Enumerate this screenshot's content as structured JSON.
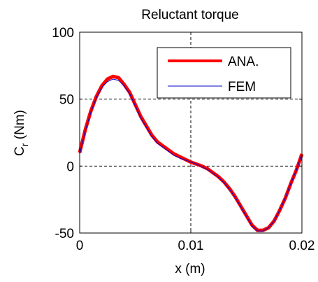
{
  "chart_data": {
    "type": "line",
    "title": "Reluctant torque",
    "xlabel": "x (m)",
    "ylabel_main": "C",
    "ylabel_sub": "r",
    "ylabel_unit": " (Nm)",
    "xlim": [
      0,
      0.02
    ],
    "ylim": [
      -50,
      100
    ],
    "xticks": [
      0,
      0.01,
      0.02
    ],
    "xtick_labels": [
      "0",
      "0.01",
      "0.02"
    ],
    "yticks": [
      -50,
      0,
      50,
      100
    ],
    "ytick_labels": [
      "-50",
      "0",
      "50",
      "100"
    ],
    "grid": true,
    "legend_position": "top-right",
    "series": [
      {
        "name": "ANA.",
        "color": "#ff0000",
        "x": [
          0,
          0.0005,
          0.001,
          0.0015,
          0.002,
          0.0025,
          0.003,
          0.0035,
          0.004,
          0.0045,
          0.005,
          0.0055,
          0.006,
          0.0065,
          0.007,
          0.0075,
          0.008,
          0.0085,
          0.009,
          0.0095,
          0.01,
          0.0105,
          0.011,
          0.0115,
          0.012,
          0.0125,
          0.013,
          0.0135,
          0.014,
          0.0145,
          0.015,
          0.0155,
          0.016,
          0.0165,
          0.017,
          0.0175,
          0.018,
          0.0185,
          0.019,
          0.0195,
          0.02
        ],
        "values": [
          10,
          27,
          41,
          52,
          60,
          65,
          67,
          66,
          61,
          55,
          46,
          37,
          30,
          23,
          18,
          15,
          12,
          9,
          7,
          5,
          3,
          1.5,
          0,
          -2,
          -5,
          -8,
          -12,
          -17,
          -23,
          -30,
          -37,
          -44,
          -48,
          -48,
          -46,
          -41,
          -33,
          -24,
          -13,
          -3,
          9
        ]
      },
      {
        "name": "FEM",
        "color": "#0000cc",
        "x": [
          0,
          0.0005,
          0.001,
          0.0015,
          0.002,
          0.0025,
          0.003,
          0.0035,
          0.004,
          0.0045,
          0.005,
          0.0055,
          0.006,
          0.0065,
          0.007,
          0.0075,
          0.008,
          0.0085,
          0.009,
          0.0095,
          0.01,
          0.0105,
          0.011,
          0.0115,
          0.012,
          0.0125,
          0.013,
          0.0135,
          0.014,
          0.0145,
          0.015,
          0.0155,
          0.016,
          0.0165,
          0.017,
          0.0175,
          0.018,
          0.0185,
          0.019,
          0.0195,
          0.02
        ],
        "values": [
          9,
          26,
          40,
          51,
          59,
          63,
          65,
          64,
          60,
          54,
          45,
          36,
          29,
          22,
          17,
          14,
          11,
          8,
          6,
          4.5,
          3,
          1.5,
          -0.5,
          -2.5,
          -5.5,
          -8.5,
          -12.5,
          -17.5,
          -23.5,
          -30.5,
          -37.5,
          -44.5,
          -48.5,
          -48.5,
          -46,
          -41,
          -33,
          -24,
          -13,
          -3,
          9
        ]
      }
    ]
  }
}
